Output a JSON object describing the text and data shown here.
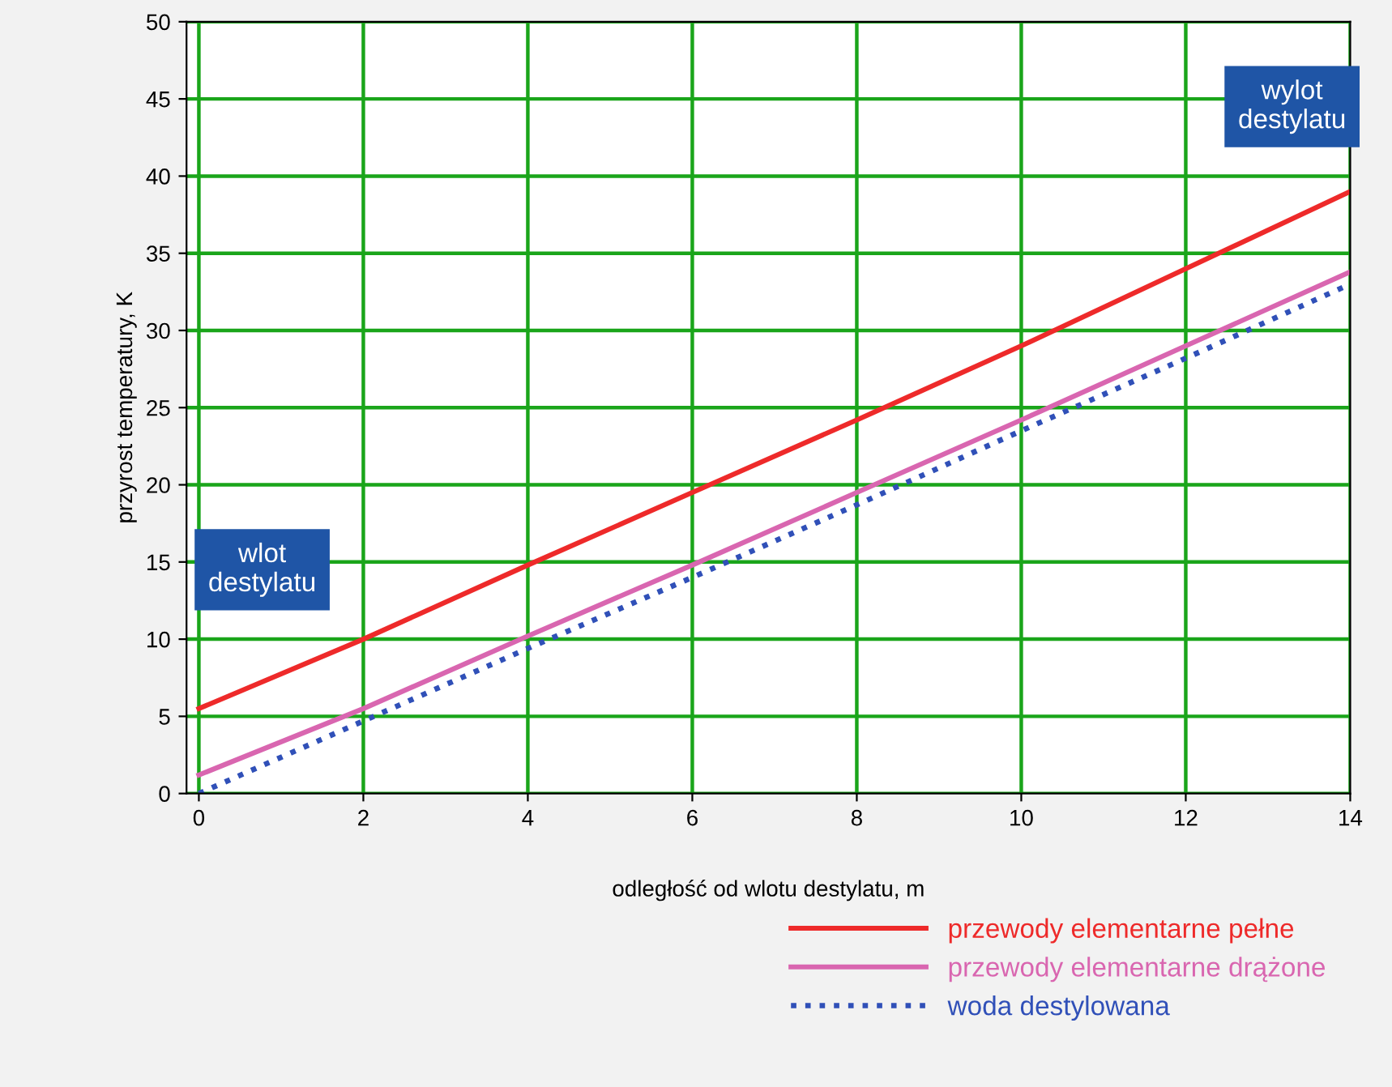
{
  "chart_data": {
    "type": "line",
    "xlabel": "odległość od wlotu destylatu, m",
    "ylabel": "przyrost temperatury, K",
    "x": [
      0,
      2,
      4,
      6,
      8,
      10,
      12,
      14
    ],
    "series": [
      {
        "name": "przewody elementarne pełne",
        "color": "#ee2a2a",
        "line_style": "solid",
        "values": [
          5.5,
          10,
          14.8,
          19.5,
          24.2,
          29,
          34,
          39
        ]
      },
      {
        "name": "przewody elementarne drążone",
        "color": "#d966b0",
        "line_style": "solid",
        "values": [
          1.2,
          5.5,
          10.2,
          14.8,
          19.5,
          24.2,
          29,
          33.8
        ]
      },
      {
        "name": "woda destylowana",
        "color": "#3050b8",
        "line_style": "dotted",
        "values": [
          0,
          4.7,
          9.4,
          14,
          18.7,
          23.5,
          28.2,
          33
        ]
      }
    ],
    "annotations": [
      "wlot\ndestylatu",
      "wylot\ndestylatu"
    ],
    "xlim": [
      -0.15,
      14
    ],
    "ylim": [
      0,
      50
    ],
    "xticks": [
      0,
      2,
      4,
      6,
      8,
      10,
      12,
      14
    ],
    "yticks": [
      0,
      5,
      10,
      15,
      20,
      25,
      30,
      35,
      40,
      45,
      50
    ],
    "grid": true,
    "legend": "bottom right",
    "marker": "none"
  }
}
